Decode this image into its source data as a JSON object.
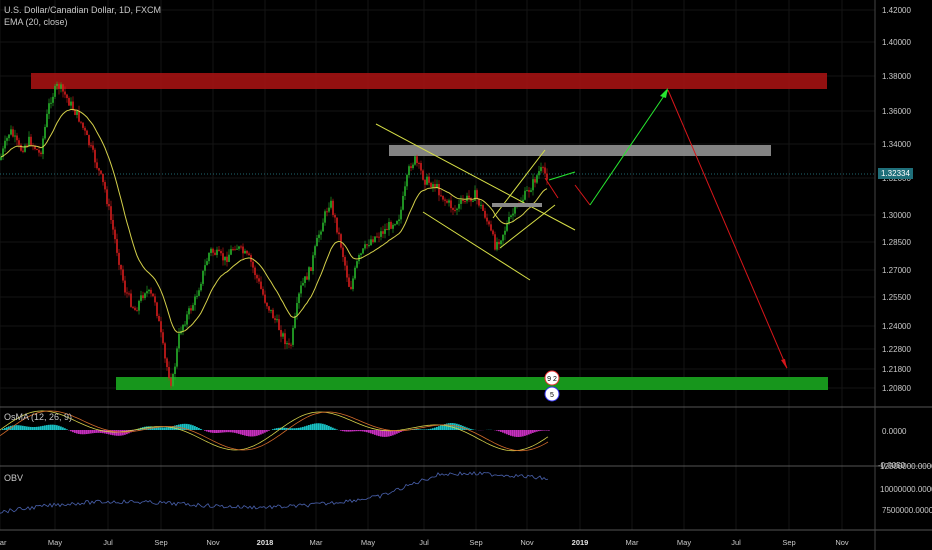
{
  "header": {
    "title": "U.S. Dollar/Canadian Dollar, 1D, FXCM",
    "ema_label": "EMA (20, close)"
  },
  "panels": {
    "osma_label": "OsMA (12, 26, 9)",
    "obv_label": "OBV"
  },
  "price_tag": "1.32334",
  "colors": {
    "background": "#000000",
    "up_candle": "#27b52b",
    "down_candle": "#d81d1d",
    "ema": "#d4d04a",
    "resistance_zone": "#a31212",
    "mid_zone": "#8a8a8a",
    "support_zone": "#17961c",
    "channel_lines": "#d8e047",
    "green_arrow": "#27e830",
    "red_arrow": "#d8161a",
    "histogram_pos": "#19c1c4",
    "histogram_neg": "#c62fbe",
    "obv_line": "#4961ad",
    "price_tag_bg": "#1f6f7a"
  },
  "chart_data": [
    {
      "type": "candlestick",
      "title": "U.S. Dollar/Canadian Dollar, 1D, FXCM",
      "indicator": "EMA (20, close)",
      "x_ticks": [
        "Mar",
        "May",
        "Jul",
        "Sep",
        "Nov",
        "2018",
        "Mar",
        "May",
        "Jul",
        "Sep",
        "Nov",
        "2019",
        "Mar",
        "May",
        "Jul",
        "Sep",
        "Nov"
      ],
      "y_ticks": [
        "1.42000",
        "1.40000",
        "1.38000",
        "1.36000",
        "1.34000",
        "1.32000",
        "1.30000",
        "1.28500",
        "1.27000",
        "1.25500",
        "1.24000",
        "1.22800",
        "1.21800",
        "1.20800"
      ],
      "ylim": [
        1.2,
        1.42
      ],
      "last_price": "1.32334",
      "key_points": [
        {
          "date": "2017-05",
          "value": 1.376,
          "label": "swing high"
        },
        {
          "date": "2017-09",
          "value": 1.208,
          "label": "swing low"
        },
        {
          "date": "2018-06",
          "value": 1.338,
          "label": "swing high"
        },
        {
          "date": "2018-11",
          "value": 1.323,
          "label": "last"
        }
      ],
      "zones": [
        {
          "name": "resistance",
          "low": 1.372,
          "high": 1.382
        },
        {
          "name": "mid",
          "low": 1.333,
          "high": 1.337
        },
        {
          "name": "support",
          "low": 1.206,
          "high": 1.214
        }
      ],
      "projection": [
        {
          "date": "2018-12",
          "value": 1.306
        },
        {
          "date": "2019-04",
          "value": 1.378
        },
        {
          "date": "2019-09",
          "value": 1.218
        }
      ],
      "markers": [
        "9 2",
        "5"
      ]
    },
    {
      "type": "histogram",
      "title": "OsMA (12, 26, 9)",
      "y_ticks": [
        "0.0000",
        "-0.0050"
      ]
    },
    {
      "type": "line",
      "title": "OBV",
      "y_ticks": [
        "12500000.0000",
        "10000000.0000",
        "7500000.0000"
      ]
    }
  ]
}
